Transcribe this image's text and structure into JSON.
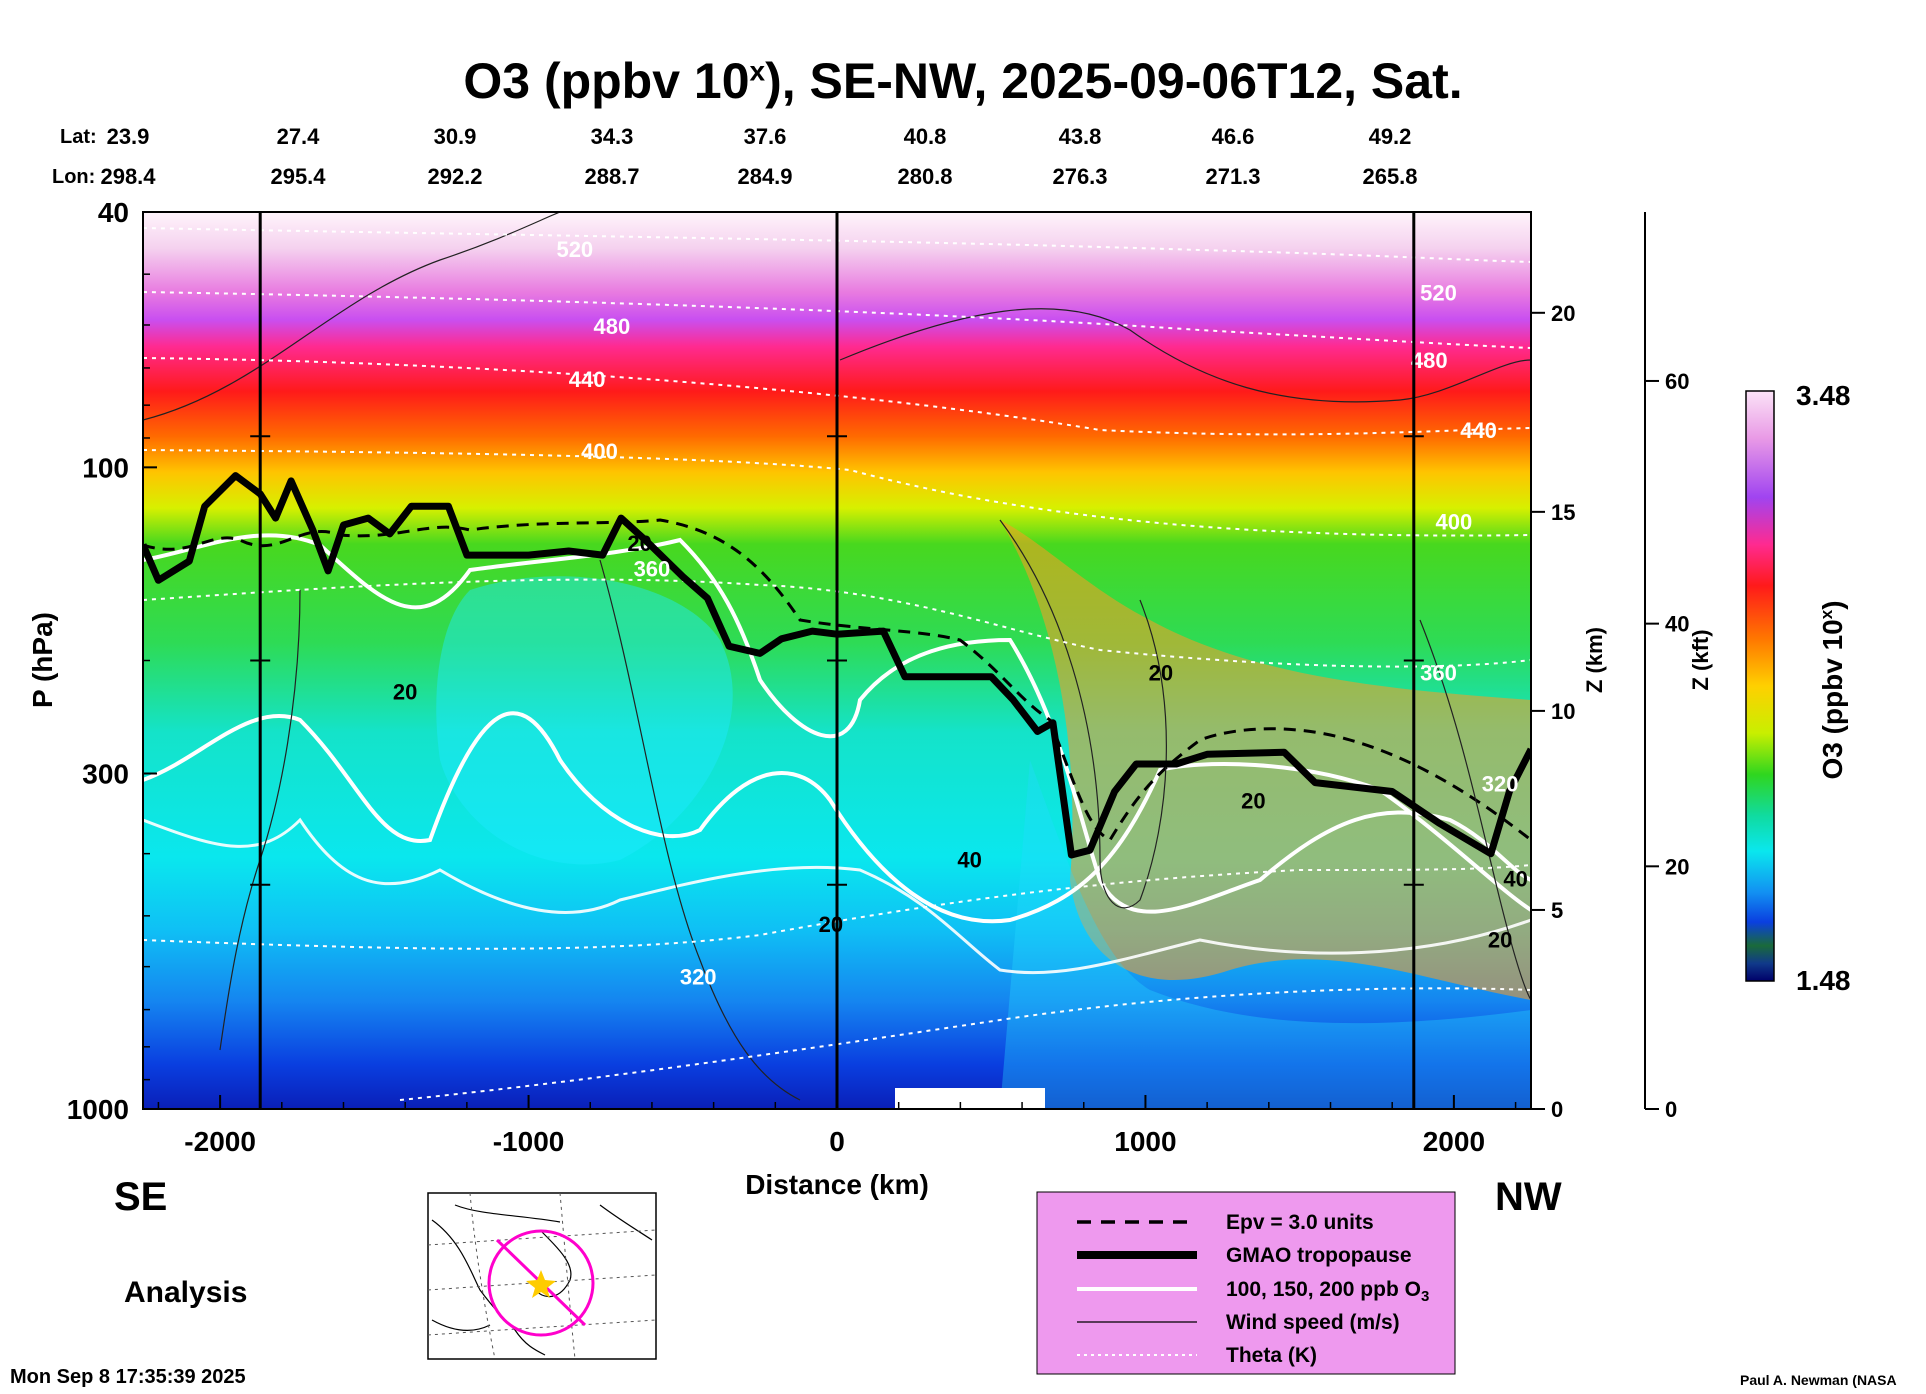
{
  "title": {
    "main": "O3 (ppbv 10",
    "sup": "x",
    "rest": "), SE-NW, 2025-09-06T12, Sat."
  },
  "header": {
    "lat_label": "Lat:",
    "lon_label": "Lon:",
    "lat": [
      "23.9",
      "27.4",
      "30.9",
      "34.3",
      "37.6",
      "40.8",
      "43.8",
      "46.6",
      "49.2"
    ],
    "lon": [
      "298.4",
      "295.4",
      "292.2",
      "288.7",
      "284.9",
      "280.8",
      "276.3",
      "271.3",
      "265.8"
    ]
  },
  "labels": {
    "se": "SE",
    "nw": "NW",
    "analysis": "Analysis",
    "timestamp": "Mon Sep  8 17:35:39 2025",
    "credit": "Paul A. Newman (NASA"
  },
  "colorbar": {
    "max": "3.48",
    "min": "1.48",
    "label_main": "O3 (ppbv 10",
    "label_sup": "x",
    "label_end": ")"
  },
  "legend": {
    "items": [
      {
        "label": "Epv = 3.0 units",
        "style": "dashed"
      },
      {
        "label": "GMAO tropopause",
        "style": "thick"
      },
      {
        "label": "100, 150, 200 ppb O",
        "sub": "3",
        "style": "white"
      },
      {
        "label": "Wind speed (m/s)",
        "style": "thin"
      },
      {
        "label": "Theta (K)",
        "style": "dotted"
      }
    ],
    "background": "#ee99ee"
  },
  "chart_data": {
    "type": "heatmap",
    "title": "O3 (ppbv 10^x), SE-NW, 2025-09-06T12, Sat.",
    "xlabel": "Distance (km)",
    "ylabel": "P (hPa)",
    "y2label": "Z (km)",
    "y3label": "Z (kft)",
    "xlim": [
      -2250,
      2250
    ],
    "ylim": [
      1000,
      40
    ],
    "yscale": "log",
    "x_ticks": [
      -2000,
      -1000,
      0,
      1000,
      2000
    ],
    "x_tick_labels": [
      "-2000",
      "-1000",
      "0",
      "1000",
      "2000"
    ],
    "y_ticks": [
      40,
      100,
      300,
      1000
    ],
    "y_tick_labels": [
      "40",
      "100",
      "300",
      "1000"
    ],
    "z_km_ticks": [
      0,
      5,
      10,
      15,
      20
    ],
    "z_kft_ticks": [
      0,
      20,
      40,
      60
    ],
    "vertical_markers_km": [
      -1870,
      0,
      1870
    ],
    "colorbar_range": [
      1.48,
      3.48
    ],
    "theta_labels": [
      {
        "value": "520",
        "x": -850,
        "p": 47
      },
      {
        "value": "480",
        "x": -730,
        "p": 62
      },
      {
        "value": "440",
        "x": -810,
        "p": 75
      },
      {
        "value": "400",
        "x": -770,
        "p": 97
      },
      {
        "value": "360",
        "x": -600,
        "p": 148
      },
      {
        "value": "320",
        "x": -450,
        "p": 640
      },
      {
        "value": "520",
        "x": 1950,
        "p": 55
      },
      {
        "value": "480",
        "x": 1920,
        "p": 70
      },
      {
        "value": "440",
        "x": 2080,
        "p": 90
      },
      {
        "value": "400",
        "x": 2000,
        "p": 125
      },
      {
        "value": "360",
        "x": 1950,
        "p": 215
      },
      {
        "value": "320",
        "x": 2150,
        "p": 320
      }
    ],
    "wind_labels": [
      {
        "value": "20",
        "x": -1400,
        "p": 230
      },
      {
        "value": "20",
        "x": -640,
        "p": 135
      },
      {
        "value": "20",
        "x": 1050,
        "p": 215
      },
      {
        "value": "20",
        "x": 1350,
        "p": 340
      },
      {
        "value": "20",
        "x": -20,
        "p": 530
      },
      {
        "value": "20",
        "x": 2150,
        "p": 560
      },
      {
        "value": "40",
        "x": 430,
        "p": 420
      },
      {
        "value": "40",
        "x": 2200,
        "p": 450
      }
    ],
    "tropopause_km": [
      [
        -2250,
        132
      ],
      [
        -2200,
        150
      ],
      [
        -2100,
        140
      ],
      [
        -2050,
        115
      ],
      [
        -1950,
        103
      ],
      [
        -1870,
        110
      ],
      [
        -1820,
        120
      ],
      [
        -1770,
        105
      ],
      [
        -1700,
        125
      ],
      [
        -1650,
        145
      ],
      [
        -1600,
        123
      ],
      [
        -1520,
        120
      ],
      [
        -1450,
        127
      ],
      [
        -1380,
        115
      ],
      [
        -1260,
        115
      ],
      [
        -1200,
        137
      ],
      [
        -1000,
        137
      ],
      [
        -870,
        135
      ],
      [
        -760,
        137
      ],
      [
        -700,
        120
      ],
      [
        -620,
        130
      ],
      [
        -500,
        148
      ],
      [
        -420,
        160
      ],
      [
        -350,
        190
      ],
      [
        -250,
        195
      ],
      [
        -180,
        185
      ],
      [
        -80,
        180
      ],
      [
        0,
        182
      ],
      [
        150,
        180
      ],
      [
        220,
        212
      ],
      [
        500,
        212
      ],
      [
        570,
        230
      ],
      [
        650,
        258
      ],
      [
        700,
        250
      ],
      [
        760,
        402
      ],
      [
        820,
        395
      ],
      [
        900,
        320
      ],
      [
        970,
        290
      ],
      [
        1100,
        290
      ],
      [
        1200,
        280
      ],
      [
        1450,
        278
      ],
      [
        1550,
        310
      ],
      [
        1800,
        320
      ],
      [
        1950,
        358
      ],
      [
        2120,
        400
      ],
      [
        2180,
        320
      ],
      [
        2250,
        275
      ]
    ]
  }
}
